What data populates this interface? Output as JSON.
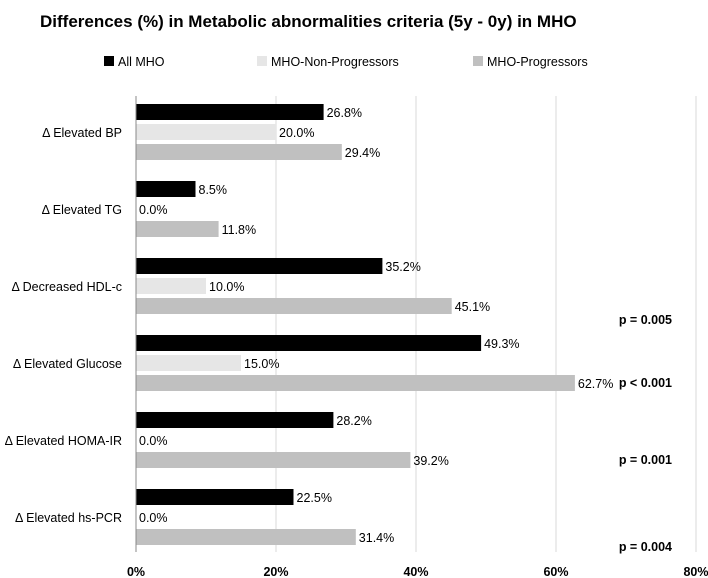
{
  "chart_data": {
    "type": "bar",
    "orientation": "horizontal",
    "title": "Differences (%) in Metabolic abnormalities criteria (5y - 0y) in MHO",
    "categories": [
      "Δ Elevated BP",
      "Δ Elevated TG",
      "Δ Decreased HDL-c",
      "Δ Elevated Glucose",
      "Δ Elevated HOMA-IR",
      "Δ Elevated hs-PCR"
    ],
    "series": [
      {
        "name": "All MHO",
        "color": "#000000",
        "values": [
          26.8,
          8.5,
          35.2,
          49.3,
          28.2,
          22.5
        ],
        "labels": [
          "26.8%",
          "8.5%",
          "35.2%",
          "49.3%",
          "28.2%",
          "22.5%"
        ]
      },
      {
        "name": "MHO-Non-Progressors",
        "color": "#e6e6e6",
        "values": [
          20.0,
          0.0,
          10.0,
          15.0,
          0.0,
          0.0
        ],
        "labels": [
          "20.0%",
          "0.0%",
          "10.0%",
          "15.0%",
          "0.0%",
          "0.0%"
        ]
      },
      {
        "name": "MHO-Progressors",
        "color": "#c0c0c0",
        "values": [
          29.4,
          11.8,
          45.1,
          62.7,
          39.2,
          31.4
        ],
        "labels": [
          "29.4%",
          "11.8%",
          "45.1%",
          "62.7%",
          "39.2%",
          "31.4%"
        ]
      }
    ],
    "p_values": [
      "",
      "",
      "p = 0.005",
      "p < 0.001",
      "p = 0.001",
      "p = 0.004"
    ],
    "xlim": [
      0,
      80
    ],
    "x_ticks": [
      0,
      20,
      40,
      60,
      80
    ],
    "x_tick_labels": [
      "0%",
      "20%",
      "40%",
      "60%",
      "80%"
    ],
    "grid": "vertical",
    "legend_position": "top"
  }
}
